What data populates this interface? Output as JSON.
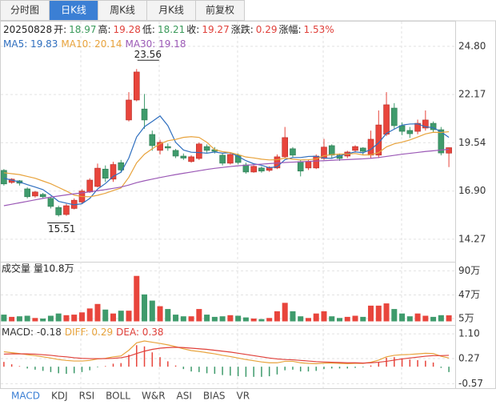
{
  "top_tabs": {
    "items": [
      "分时图",
      "日K线",
      "周K线",
      "月K线",
      "前复权"
    ],
    "active": 1
  },
  "info": {
    "date": "20250828",
    "items": [
      {
        "label": "开:",
        "value": "18.97",
        "color": "#3a9a5a"
      },
      {
        "label": "高:",
        "value": "19.28",
        "color": "#e0403a"
      },
      {
        "label": "低:",
        "value": "18.21",
        "color": "#3a9a5a"
      },
      {
        "label": "收:",
        "value": "19.27",
        "color": "#e0403a"
      },
      {
        "label": "涨跌:",
        "value": "0.29",
        "color": "#e0403a"
      },
      {
        "label": "涨幅:",
        "value": "1.53%",
        "color": "#e0403a"
      }
    ]
  },
  "chart_data": [
    {
      "type": "candlestick",
      "open": [
        18.03,
        17.37,
        17.46,
        17.02,
        16.63,
        16.72,
        16.5,
        16.0,
        15.62,
        15.95,
        16.3,
        16.85,
        17.15,
        18.1,
        17.55,
        18.45,
        20.78,
        21.87,
        21.38,
        19.99,
        19.12,
        19.33,
        19.12,
        18.81,
        18.51,
        18.68,
        19.33,
        19.16,
        18.86,
        18.42,
        18.86,
        18.33,
        17.94,
        18.16,
        18.03,
        18.16,
        18.77,
        19.21,
        18.51,
        18.16,
        18.16,
        18.68,
        19.38,
        18.86,
        18.81,
        19.12,
        19.25,
        18.86,
        18.86,
        20.0,
        21.43,
        20.47,
        20.21,
        20.16,
        20.34,
        20.6,
        20.25,
        18.97
      ],
      "high": [
        18.1,
        17.6,
        17.5,
        17.1,
        16.9,
        16.8,
        16.6,
        16.1,
        16.2,
        16.5,
        17.0,
        17.6,
        18.4,
        18.3,
        18.5,
        18.6,
        22.3,
        23.56,
        22.2,
        20.2,
        19.7,
        19.5,
        19.2,
        18.95,
        18.85,
        19.55,
        19.45,
        19.3,
        18.95,
        19.0,
        18.95,
        18.45,
        18.3,
        18.25,
        18.25,
        18.9,
        20.4,
        19.3,
        18.6,
        18.6,
        18.9,
        19.75,
        19.45,
        18.95,
        19.1,
        19.4,
        19.3,
        20.2,
        21.3,
        22.3,
        21.7,
        20.65,
        20.4,
        20.8,
        21.3,
        20.7,
        20.4,
        19.28
      ],
      "low": [
        17.2,
        17.3,
        17.2,
        16.5,
        16.55,
        16.5,
        15.95,
        15.51,
        15.55,
        15.9,
        16.2,
        16.8,
        17.1,
        17.4,
        17.4,
        17.9,
        20.7,
        21.8,
        20.3,
        19.1,
        18.9,
        19.1,
        18.7,
        18.6,
        18.45,
        18.6,
        19.0,
        18.95,
        18.3,
        18.35,
        18.35,
        17.85,
        17.9,
        17.9,
        17.95,
        18.1,
        18.7,
        18.75,
        17.7,
        18.05,
        18.1,
        18.6,
        18.7,
        18.55,
        18.7,
        19.0,
        18.85,
        18.7,
        18.7,
        19.9,
        20.3,
        19.95,
        19.8,
        20.0,
        20.2,
        20.1,
        18.85,
        18.21
      ],
      "close": [
        17.29,
        17.55,
        17.33,
        16.59,
        16.85,
        16.59,
        16.06,
        15.6,
        16.1,
        16.4,
        16.9,
        17.5,
        18.15,
        17.6,
        18.35,
        18.05,
        21.87,
        23.4,
        20.78,
        19.38,
        19.56,
        19.25,
        18.81,
        18.7,
        18.77,
        19.47,
        19.12,
        19.07,
        18.42,
        18.9,
        18.46,
        17.94,
        18.25,
        17.99,
        18.2,
        18.77,
        19.82,
        18.86,
        17.99,
        18.51,
        18.81,
        19.3,
        18.86,
        18.68,
        19.03,
        19.33,
        19.07,
        19.73,
        20.51,
        21.61,
        20.47,
        20.16,
        20.03,
        20.6,
        20.78,
        20.25,
        18.98,
        19.27
      ],
      "up_color": "#e8453c",
      "down_color": "#3f9b6c",
      "ylim": [
        13.13,
        25.32
      ],
      "yticks": [
        {
          "value": 24.8,
          "label": "24.80"
        },
        22.17,
        19.54,
        {
          "value": 16.9,
          "label": "16.90"
        },
        14.27
      ],
      "high_label": 23.56,
      "low_label": 15.51,
      "series": [
        {
          "name": "MA5: 19.83",
          "color": "#2f6fbf",
          "values": [
            17.6,
            17.5,
            17.4,
            17.25,
            17.12,
            16.98,
            16.68,
            16.34,
            16.24,
            16.15,
            16.21,
            16.5,
            17.01,
            17.31,
            17.7,
            17.93,
            18.7,
            19.85,
            20.41,
            20.7,
            21.0,
            20.47,
            19.56,
            19.14,
            19.02,
            19.0,
            18.97,
            19.03,
            18.97,
            19.0,
            18.79,
            18.56,
            18.39,
            18.31,
            18.17,
            18.23,
            18.61,
            18.73,
            18.73,
            18.79,
            18.8,
            18.7,
            18.69,
            18.83,
            18.94,
            19.04,
            18.99,
            19.17,
            19.53,
            20.05,
            20.28,
            20.5,
            20.56,
            20.57,
            20.41,
            20.36,
            20.13,
            19.83
          ]
        },
        {
          "name": "MA10: 20.14",
          "color": "#e8a33c",
          "values": [
            17.9,
            17.85,
            17.8,
            17.7,
            17.6,
            17.45,
            17.3,
            17.1,
            16.9,
            16.68,
            16.6,
            16.59,
            16.67,
            16.78,
            16.93,
            17.07,
            17.65,
            18.44,
            18.91,
            19.21,
            19.48,
            19.65,
            19.72,
            19.83,
            19.87,
            19.83,
            19.56,
            19.16,
            19.05,
            19.0,
            18.89,
            18.76,
            18.71,
            18.64,
            18.6,
            18.61,
            18.7,
            18.64,
            18.6,
            18.61,
            18.65,
            18.83,
            18.89,
            18.92,
            18.92,
            18.95,
            18.87,
            18.88,
            19.0,
            19.31,
            19.48,
            19.57,
            19.69,
            19.85,
            20.02,
            20.11,
            20.1,
            20.14
          ]
        },
        {
          "name": "MA30: 19.18",
          "color": "#9b59b6",
          "values": [
            16.1,
            16.18,
            16.26,
            16.34,
            16.42,
            16.5,
            16.57,
            16.63,
            16.69,
            16.75,
            16.8,
            16.86,
            16.92,
            16.98,
            17.05,
            17.12,
            17.23,
            17.36,
            17.46,
            17.55,
            17.64,
            17.72,
            17.8,
            17.87,
            17.94,
            18.01,
            18.08,
            18.14,
            18.19,
            18.24,
            18.28,
            18.31,
            18.34,
            18.37,
            18.4,
            18.43,
            18.46,
            18.48,
            18.5,
            18.52,
            18.54,
            18.56,
            18.58,
            18.6,
            18.62,
            18.64,
            18.66,
            18.69,
            18.73,
            18.79,
            18.85,
            18.91,
            18.96,
            19.01,
            19.06,
            19.1,
            19.14,
            19.18
          ]
        }
      ]
    },
    {
      "type": "bar",
      "title": "成交量 量10.8万",
      "values": [
        12,
        8,
        9,
        10,
        6,
        5,
        10,
        14,
        11,
        12,
        16,
        23,
        31,
        21,
        14,
        19,
        19,
        81,
        48,
        37,
        27,
        22,
        12,
        9,
        9,
        22,
        12,
        8,
        9,
        11,
        10,
        7,
        5,
        4,
        6,
        18,
        33,
        18,
        9,
        6,
        14,
        18,
        9,
        6,
        8,
        10,
        8,
        28,
        28,
        32,
        22,
        14,
        9,
        14,
        10,
        8,
        11,
        10.8
      ],
      "up_color": "#e8453c",
      "down_color": "#3f9b6c",
      "ylim": [
        0,
        102
      ],
      "yticks": [
        {
          "value": 90,
          "label": "90万"
        },
        {
          "value": 47,
          "label": "47万"
        },
        {
          "value": 5,
          "label": "5万"
        }
      ]
    },
    {
      "type": "macd",
      "ylim": [
        -0.72,
        1.29
      ],
      "yticks": [
        {
          "value": 1.1,
          "label": "1.10"
        },
        0.27,
        -0.57
      ],
      "up_color": "#e8453c",
      "down_color": "#3f9b6c",
      "series": [
        {
          "name": "MACD: -0.18",
          "color": "#333333",
          "values": [
            0.16,
            0.08,
            0.02,
            -0.06,
            -0.1,
            -0.14,
            -0.18,
            -0.22,
            -0.24,
            -0.22,
            -0.18,
            -0.12,
            -0.02,
            0.02,
            0.1,
            0.12,
            0.4,
            0.72,
            0.68,
            0.48,
            0.32,
            0.18,
            0.04,
            -0.08,
            -0.16,
            -0.18,
            -0.22,
            -0.24,
            -0.28,
            -0.3,
            -0.32,
            -0.34,
            -0.34,
            -0.34,
            -0.32,
            -0.26,
            -0.12,
            -0.1,
            -0.16,
            -0.16,
            -0.14,
            -0.08,
            -0.06,
            -0.06,
            -0.06,
            -0.04,
            -0.02,
            0.04,
            0.14,
            0.3,
            0.32,
            0.28,
            0.24,
            0.22,
            0.2,
            0.14,
            -0.04,
            -0.18
          ]
        },
        {
          "name": "DIFF: 0.29",
          "color": "#e8a33c",
          "values": [
            0.5,
            0.47,
            0.44,
            0.4,
            0.37,
            0.33,
            0.29,
            0.24,
            0.21,
            0.19,
            0.19,
            0.21,
            0.26,
            0.28,
            0.33,
            0.36,
            0.55,
            0.8,
            0.86,
            0.82,
            0.78,
            0.73,
            0.67,
            0.6,
            0.54,
            0.51,
            0.47,
            0.43,
            0.38,
            0.34,
            0.29,
            0.24,
            0.2,
            0.16,
            0.13,
            0.13,
            0.18,
            0.18,
            0.13,
            0.11,
            0.1,
            0.12,
            0.12,
            0.11,
            0.1,
            0.11,
            0.11,
            0.15,
            0.22,
            0.33,
            0.38,
            0.4,
            0.41,
            0.43,
            0.45,
            0.44,
            0.35,
            0.29
          ]
        },
        {
          "name": "DEA: 0.38",
          "color": "#e0403a",
          "values": [
            0.42,
            0.43,
            0.43,
            0.43,
            0.42,
            0.4,
            0.38,
            0.35,
            0.33,
            0.3,
            0.28,
            0.27,
            0.27,
            0.27,
            0.28,
            0.3,
            0.35,
            0.44,
            0.52,
            0.58,
            0.62,
            0.64,
            0.65,
            0.64,
            0.62,
            0.6,
            0.58,
            0.55,
            0.52,
            0.49,
            0.45,
            0.41,
            0.37,
            0.33,
            0.29,
            0.26,
            0.24,
            0.23,
            0.21,
            0.19,
            0.17,
            0.16,
            0.15,
            0.14,
            0.13,
            0.13,
            0.12,
            0.13,
            0.15,
            0.18,
            0.22,
            0.26,
            0.29,
            0.32,
            0.35,
            0.37,
            0.37,
            0.38
          ]
        }
      ]
    }
  ],
  "bottom_tabs": {
    "items": [
      "MACD",
      "KDJ",
      "RSI",
      "BOLL",
      "W&R",
      "ASI",
      "BIAS",
      "VR"
    ],
    "active": 0
  }
}
